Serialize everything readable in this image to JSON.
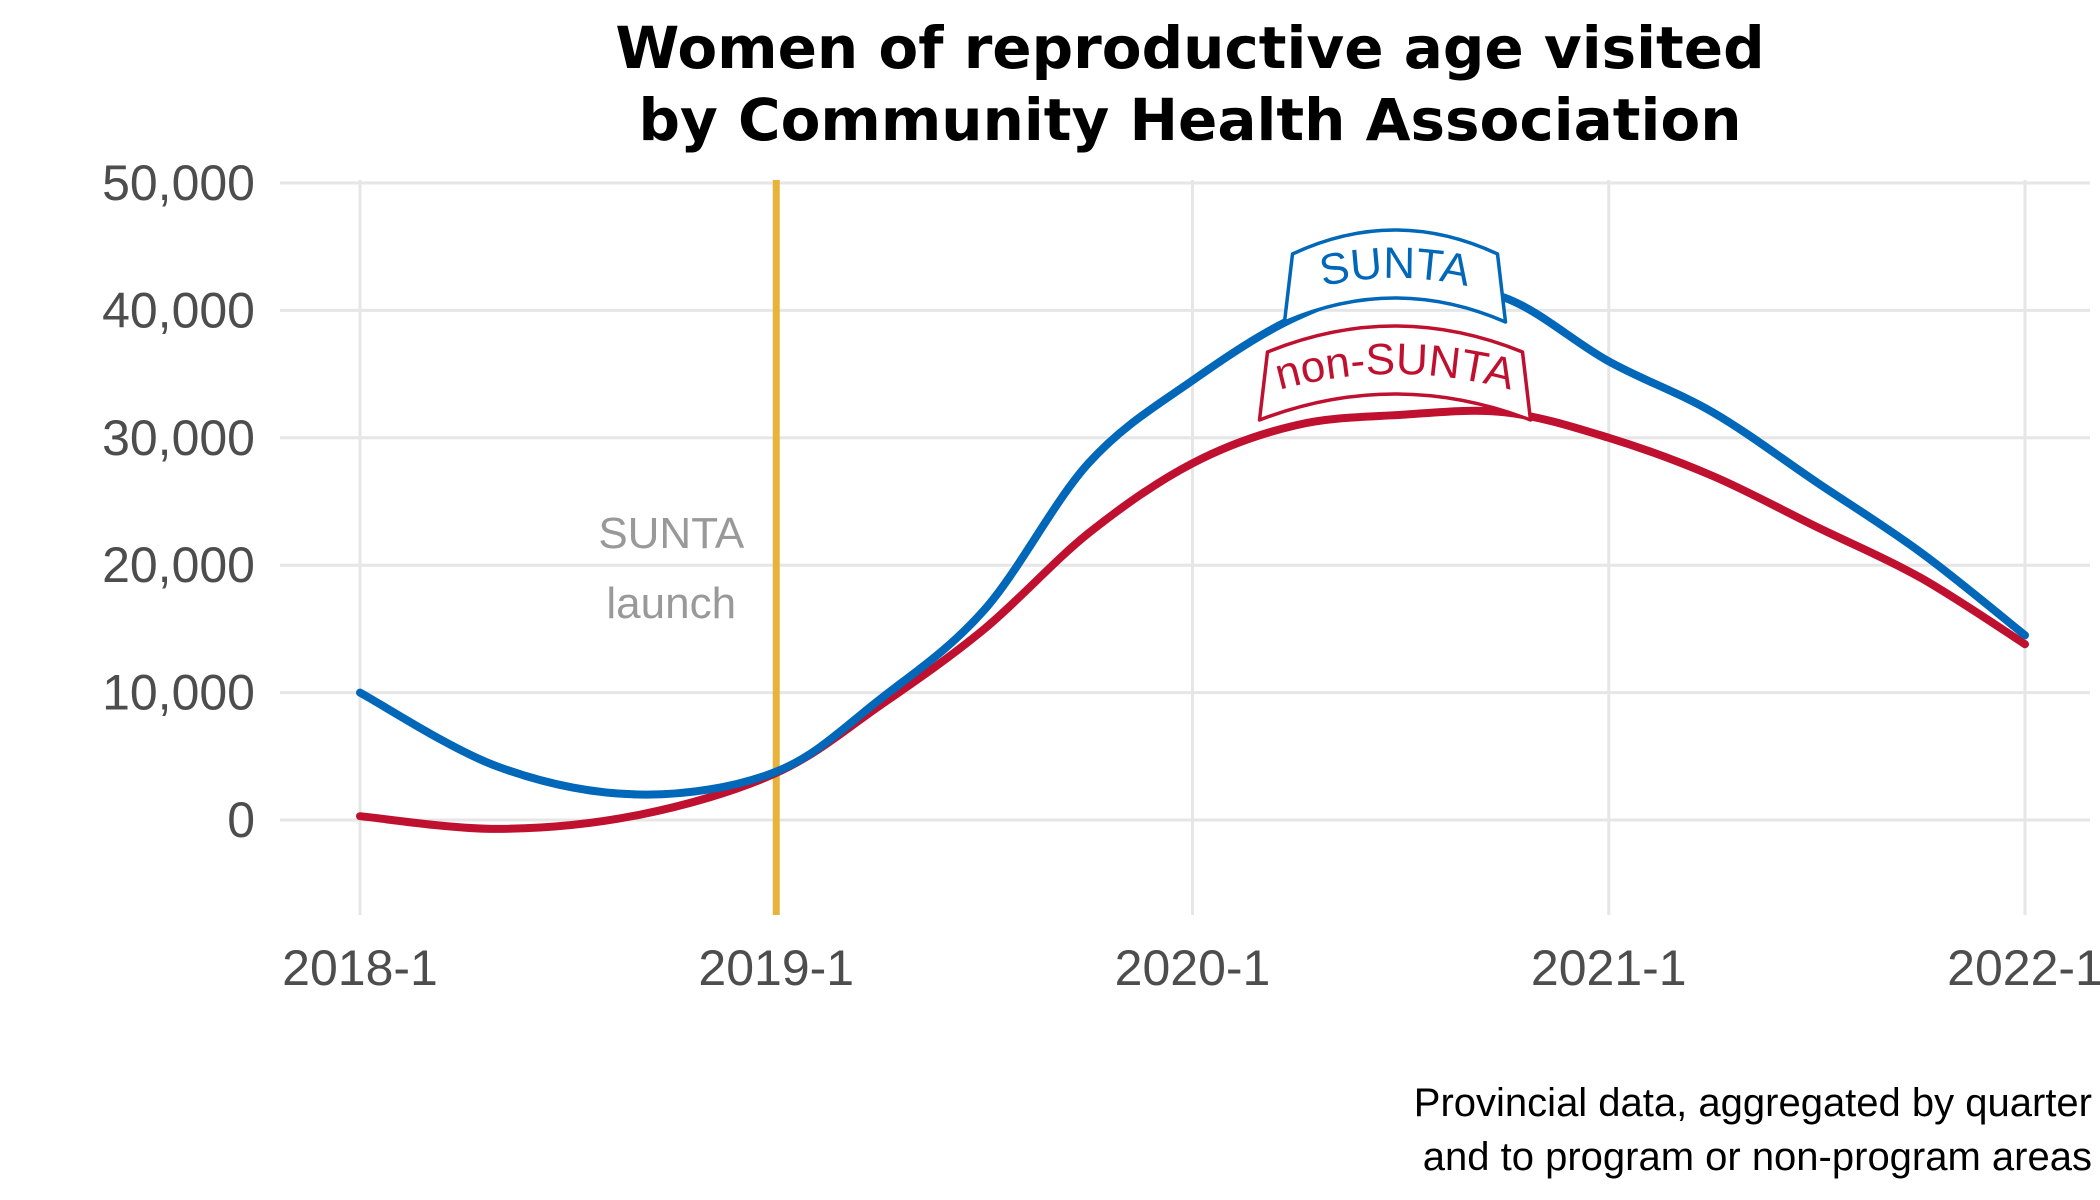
{
  "chart_data": {
    "type": "line",
    "title": [
      "Women of reproductive age visited",
      "by Community Health Association"
    ],
    "caption": [
      "Provincial data, aggregated by quarter",
      "and to program or non-program areas"
    ],
    "x_ticks": [
      "2018-1",
      "2019-1",
      "2020-1",
      "2021-1",
      "2022-1"
    ],
    "y_ticks": [
      "0",
      "10,000",
      "20,000",
      "30,000",
      "40,000",
      "50,000"
    ],
    "ylim": [
      -7500,
      50000
    ],
    "grid": true,
    "x": [
      2018.0,
      2018.33,
      2018.67,
      2019.0,
      2019.25,
      2019.5,
      2019.75,
      2020.0,
      2020.25,
      2020.5,
      2020.75,
      2021.0,
      2021.25,
      2021.5,
      2021.75,
      2022.0
    ],
    "series": [
      {
        "name": "SUNTA",
        "color": "#0067b9",
        "values": [
          10000,
          4200,
          2000,
          3800,
          9500,
          16500,
          28000,
          34500,
          39500,
          42000,
          41000,
          36000,
          32000,
          26500,
          21000,
          14500
        ]
      },
      {
        "name": "non-SUNTA",
        "color": "#c0102f",
        "values": [
          300,
          -700,
          400,
          3700,
          9000,
          15000,
          22500,
          28000,
          31000,
          31800,
          32000,
          30000,
          27000,
          23000,
          19000,
          13800
        ]
      }
    ],
    "annotations": [
      {
        "type": "vline",
        "x": 2019.0,
        "color": "#e8b33a",
        "label": [
          "SUNTA",
          "launch"
        ]
      }
    ]
  }
}
